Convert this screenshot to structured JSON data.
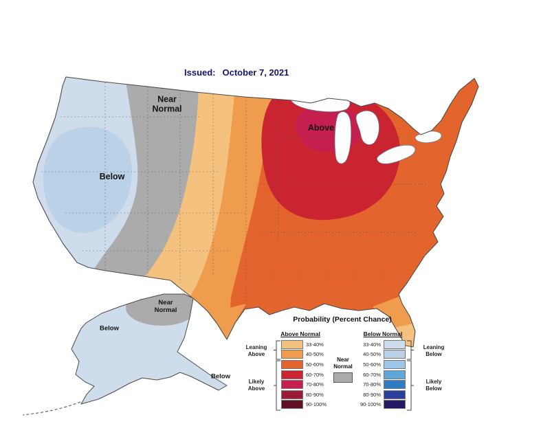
{
  "header": {
    "issued_label": "Issued:",
    "issued_date": "October 7, 2021"
  },
  "conus_labels": {
    "near_normal": "Near\nNormal",
    "below": "Below",
    "above": "Above"
  },
  "alaska_labels": {
    "near_normal": "Near\nNormal",
    "below_west": "Below",
    "below_panhandle": "Below"
  },
  "legend": {
    "title": "Probability (Percent Chance)",
    "above_header": "Above Normal",
    "below_header": "Below Normal",
    "near_normal_label": "Near\nNormal",
    "leaning_above": "Leaning\nAbove",
    "likely_above": "Likely\nAbove",
    "leaning_below": "Leaning\nBelow",
    "likely_below": "Likely\nBelow",
    "ranges": [
      "33-40%",
      "40-50%",
      "50-60%",
      "60-70%",
      "70-80%",
      "80-90%",
      "90-100%"
    ],
    "above_colors": [
      "#F5C17E",
      "#F09C4F",
      "#E4642E",
      "#CA2430",
      "#C41F4E",
      "#9A1B35",
      "#5F1023"
    ],
    "below_colors": [
      "#CEDCEC",
      "#BAD1E8",
      "#9DC5E7",
      "#5FA6DB",
      "#2F7CC3",
      "#2A3F9B",
      "#231A63"
    ],
    "near_normal_color": "#ABABAB"
  },
  "map_colors": {
    "below_33_40": "#CEDCEC",
    "below_40_50": "#BAD1E8",
    "near_normal": "#ABABAB",
    "above_33_40": "#F5C17E",
    "above_40_50": "#F09C4F",
    "above_50_60": "#E4642E",
    "above_60_70": "#CA2430",
    "above_70_80": "#C41F4E"
  },
  "colors": {
    "title_text": "#15156b",
    "outline": "#4a4a4a",
    "lakes": "#FDFDFD"
  }
}
